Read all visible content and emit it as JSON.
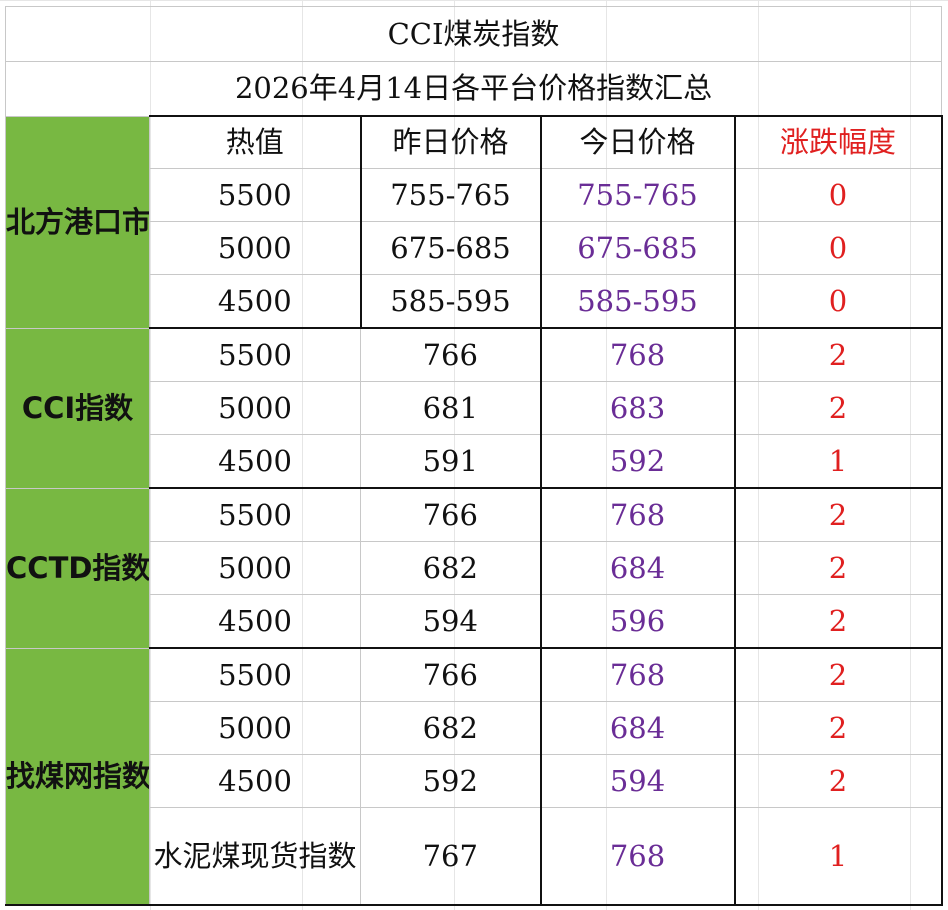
{
  "title": "CCI煤炭指数",
  "subtitle": "2026年4月14日各平台价格指数汇总",
  "headers": {
    "calorific": "热值",
    "yesterday": "昨日价格",
    "today": "今日价格",
    "change": "涨跌幅度"
  },
  "groups": [
    {
      "label": "北方港口市场煤报价",
      "rows": [
        {
          "calorific": "5500",
          "yesterday": "755-765",
          "today": "755-765",
          "change": "0"
        },
        {
          "calorific": "5000",
          "yesterday": "675-685",
          "today": "675-685",
          "change": "0"
        },
        {
          "calorific": "4500",
          "yesterday": "585-595",
          "today": "585-595",
          "change": "0"
        }
      ]
    },
    {
      "label": "CCI指数",
      "rows": [
        {
          "calorific": "5500",
          "yesterday": "766",
          "today": "768",
          "change": "2"
        },
        {
          "calorific": "5000",
          "yesterday": "681",
          "today": "683",
          "change": "2"
        },
        {
          "calorific": "4500",
          "yesterday": "591",
          "today": "592",
          "change": "1"
        }
      ]
    },
    {
      "label": "CCTD指数",
      "rows": [
        {
          "calorific": "5500",
          "yesterday": "766",
          "today": "768",
          "change": "2"
        },
        {
          "calorific": "5000",
          "yesterday": "682",
          "today": "684",
          "change": "2"
        },
        {
          "calorific": "4500",
          "yesterday": "594",
          "today": "596",
          "change": "2"
        }
      ]
    },
    {
      "label": "找煤网指数",
      "rows": [
        {
          "calorific": "5500",
          "yesterday": "766",
          "today": "768",
          "change": "2"
        },
        {
          "calorific": "5000",
          "yesterday": "682",
          "today": "684",
          "change": "2"
        },
        {
          "calorific": "4500",
          "yesterday": "592",
          "today": "594",
          "change": "2"
        },
        {
          "calorific": "水泥煤现货指数",
          "yesterday": "767",
          "today": "768",
          "change": "1"
        }
      ]
    }
  ],
  "colors": {
    "group_bg": "#78b842",
    "today_text": "#6a2d96",
    "change_text": "#e02020"
  }
}
